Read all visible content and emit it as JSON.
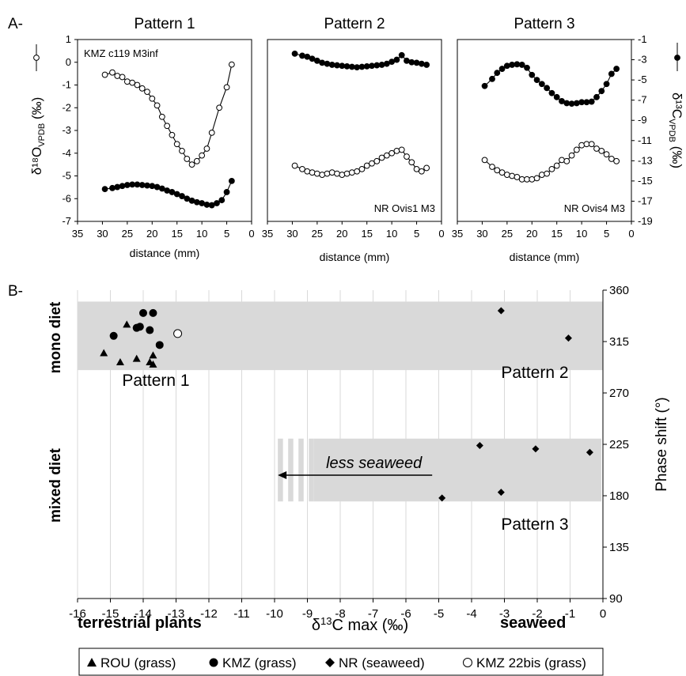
{
  "panel_a": {
    "label": "A-",
    "left_axis_title": "δ¹⁸O",
    "left_axis_sub": "VPDB",
    "left_axis_unit": "(‰)",
    "right_axis_title": "δ¹³C",
    "right_axis_sub": "VPDB",
    "right_axis_unit": "(‰)",
    "xlabel": "distance (mm)"
  },
  "panel_b": {
    "label": "B-",
    "ylabel_right": "Phase shift (°)",
    "xlabel_main": "δ",
    "xlabel_sup": "13",
    "xlabel_rest": "C max (‰)",
    "xlabel_left": "terrestrial plants",
    "xlabel_right": "seaweed",
    "group_mono": "mono diet",
    "group_mixed": "mixed diet",
    "pattern1": "Pattern 1",
    "pattern2": "Pattern 2",
    "pattern3": "Pattern 3",
    "arrow_label": "less seaweed"
  },
  "legend": [
    {
      "symbol": "▲",
      "label": "ROU (grass)"
    },
    {
      "symbol": "●",
      "label": "KMZ (grass)"
    },
    {
      "symbol": "◆",
      "label": "NR (seaweed)"
    },
    {
      "symbol": "○",
      "label": "KMZ 22bis (grass)"
    }
  ],
  "chart_data": [
    {
      "type": "line",
      "title": "Pattern 1",
      "sample_label": "KMZ c119 M3inf",
      "xlabel": "distance (mm)",
      "xlim": [
        35,
        0
      ],
      "ylim_left": [
        -7,
        1
      ],
      "ylim_right": [
        -19,
        -1
      ],
      "x_ticks": [
        35,
        30,
        25,
        20,
        15,
        10,
        5,
        0
      ],
      "y_left_ticks": [
        1,
        0,
        -1,
        -2,
        -3,
        -4,
        -5,
        -6,
        -7
      ],
      "y_right_ticks": [
        -1,
        -3,
        -5,
        -7,
        -9,
        -11,
        -13,
        -15,
        -17,
        -19
      ],
      "series": [
        {
          "axis": "left",
          "marker": "open",
          "x": [
            29.5,
            28,
            27,
            26,
            25,
            24,
            23,
            22,
            21,
            20,
            19,
            18,
            17,
            16,
            15,
            14,
            13,
            12,
            11,
            10,
            9,
            8,
            6.5,
            5,
            4
          ],
          "values": [
            -0.55,
            -0.45,
            -0.6,
            -0.65,
            -0.85,
            -0.9,
            -1.0,
            -1.15,
            -1.3,
            -1.6,
            -1.9,
            -2.4,
            -2.8,
            -3.2,
            -3.6,
            -3.9,
            -4.25,
            -4.5,
            -4.35,
            -4.1,
            -3.8,
            -3.1,
            -2.0,
            -1.1,
            -0.1
          ]
        },
        {
          "axis": "right",
          "marker": "filled",
          "x": [
            29.5,
            28,
            27,
            26,
            25,
            24,
            23,
            22,
            21,
            20,
            19,
            18,
            17,
            16,
            15,
            14,
            13,
            12,
            11,
            10,
            9,
            8,
            7,
            6,
            5,
            4
          ],
          "values": [
            -15.8,
            -15.7,
            -15.6,
            -15.5,
            -15.4,
            -15.35,
            -15.35,
            -15.4,
            -15.45,
            -15.5,
            -15.6,
            -15.75,
            -15.95,
            -16.1,
            -16.3,
            -16.5,
            -16.75,
            -16.95,
            -17.1,
            -17.2,
            -17.35,
            -17.4,
            -17.2,
            -16.9,
            -16.1,
            -15.0
          ]
        }
      ]
    },
    {
      "type": "line",
      "title": "Pattern 2",
      "sample_label": "NR Ovis1 M3",
      "xlabel": "distance (mm)",
      "xlim": [
        35,
        0
      ],
      "x_ticks": [
        35,
        30,
        25,
        20,
        15,
        10,
        5,
        0
      ],
      "series": [
        {
          "axis": "left",
          "marker": "open",
          "x": [
            29.5,
            28,
            27,
            26,
            25,
            24,
            23,
            22,
            21,
            20,
            19,
            18,
            17,
            16,
            15,
            14,
            13,
            12,
            11,
            10,
            9,
            8,
            7,
            6,
            5,
            4,
            3
          ],
          "values": [
            -4.55,
            -4.7,
            -4.8,
            -4.85,
            -4.9,
            -4.95,
            -4.9,
            -4.85,
            -4.9,
            -4.95,
            -4.9,
            -4.85,
            -4.8,
            -4.7,
            -4.55,
            -4.45,
            -4.35,
            -4.2,
            -4.1,
            -4.0,
            -3.9,
            -3.85,
            -4.15,
            -4.4,
            -4.7,
            -4.8,
            -4.65
          ]
        },
        {
          "axis": "right",
          "marker": "filled",
          "x": [
            29.5,
            28,
            27,
            26,
            25,
            24,
            23,
            22,
            21,
            20,
            19,
            18,
            17,
            16,
            15,
            14,
            13,
            12,
            11,
            10,
            9,
            8,
            7,
            6,
            5,
            4,
            3
          ],
          "values": [
            -2.4,
            -2.6,
            -2.7,
            -2.9,
            -3.1,
            -3.3,
            -3.4,
            -3.5,
            -3.55,
            -3.6,
            -3.65,
            -3.7,
            -3.75,
            -3.7,
            -3.65,
            -3.6,
            -3.55,
            -3.5,
            -3.4,
            -3.2,
            -3.0,
            -2.55,
            -3.1,
            -3.25,
            -3.3,
            -3.4,
            -3.5
          ]
        }
      ]
    },
    {
      "type": "line",
      "title": "Pattern 3",
      "sample_label": "NR Ovis4 M3",
      "xlabel": "distance (mm)",
      "xlim": [
        35,
        0
      ],
      "x_ticks": [
        35,
        30,
        25,
        20,
        15,
        10,
        5,
        0
      ],
      "series": [
        {
          "axis": "left",
          "marker": "open",
          "x": [
            29.5,
            28,
            27,
            26,
            25,
            24,
            23,
            22,
            21,
            20,
            19,
            18,
            17,
            16,
            15,
            14,
            13,
            12,
            11,
            10,
            9,
            8,
            7,
            6,
            5,
            4,
            3
          ],
          "values": [
            -4.3,
            -4.6,
            -4.75,
            -4.85,
            -4.95,
            -5.0,
            -5.05,
            -5.15,
            -5.15,
            -5.15,
            -5.1,
            -4.95,
            -4.9,
            -4.7,
            -4.55,
            -4.3,
            -4.35,
            -4.1,
            -3.85,
            -3.65,
            -3.6,
            -3.6,
            -3.8,
            -3.9,
            -4.05,
            -4.25,
            -4.35
          ]
        },
        {
          "axis": "right",
          "marker": "filled",
          "x": [
            29.5,
            28,
            27,
            26,
            25,
            24,
            23,
            22,
            21,
            20,
            19,
            18,
            17,
            16,
            15,
            14,
            13,
            12,
            11,
            10,
            9,
            8,
            7,
            6,
            5,
            4,
            3
          ],
          "values": [
            -5.6,
            -4.9,
            -4.3,
            -3.9,
            -3.6,
            -3.5,
            -3.45,
            -3.5,
            -3.8,
            -4.5,
            -5.0,
            -5.4,
            -5.8,
            -6.3,
            -6.7,
            -7.1,
            -7.3,
            -7.35,
            -7.3,
            -7.2,
            -7.2,
            -7.15,
            -6.7,
            -6.1,
            -5.4,
            -4.4,
            -3.9
          ]
        }
      ]
    },
    {
      "type": "scatter",
      "xlabel": "δ13C max (‰)",
      "ylabel": "Phase shift (°)",
      "xlim": [
        -16,
        0
      ],
      "ylim": [
        90,
        360
      ],
      "x_ticks": [
        -16,
        -15,
        -14,
        -13,
        -12,
        -11,
        -10,
        -9,
        -8,
        -7,
        -6,
        -5,
        -4,
        -3,
        -2,
        -1,
        0
      ],
      "y_ticks": [
        90,
        135,
        180,
        225,
        270,
        315,
        360
      ],
      "series": [
        {
          "name": "ROU (grass)",
          "marker": "triangle",
          "x": [
            -15.2,
            -14.7,
            -14.5,
            -14.2,
            -13.8,
            -13.7,
            -13.7
          ],
          "y": [
            305,
            297,
            330,
            300,
            297,
            295,
            303
          ]
        },
        {
          "name": "KMZ (grass)",
          "marker": "circle",
          "x": [
            -14.9,
            -14.2,
            -14.1,
            -14.0,
            -13.8,
            -13.7,
            -13.5
          ],
          "y": [
            320,
            327,
            328,
            340,
            325,
            340,
            312
          ]
        },
        {
          "name": "NR (seaweed)",
          "marker": "diamond",
          "x": [
            -3.1,
            -1.05,
            -3.75,
            -2.05,
            -0.4,
            -4.9,
            -3.1
          ],
          "y": [
            342,
            318,
            224,
            221,
            218,
            178,
            183
          ]
        },
        {
          "name": "KMZ 22bis (grass)",
          "marker": "open-circle",
          "x": [
            -12.95
          ],
          "y": [
            322
          ]
        }
      ],
      "bands": [
        {
          "x": [
            -16,
            0
          ],
          "y": [
            290,
            350
          ]
        },
        {
          "x": [
            -8.8,
            0
          ],
          "y": [
            175,
            230
          ],
          "fade_from": -9.9
        }
      ],
      "arrow": {
        "from": -5.2,
        "to": -9.9,
        "y": 198
      }
    }
  ]
}
